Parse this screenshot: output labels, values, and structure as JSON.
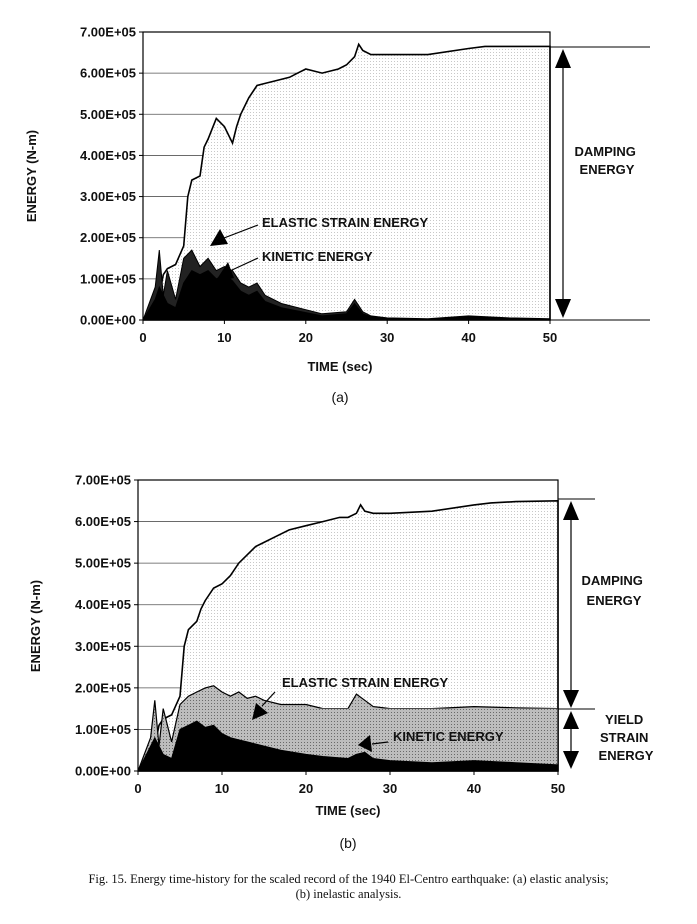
{
  "chart_data": [
    {
      "type": "area",
      "panel_label": "(a)",
      "xlabel": "TIME (sec)",
      "ylabel": "ENERGY (N-m)",
      "xlim": [
        0,
        50
      ],
      "ylim": [
        0,
        700000
      ],
      "x_ticks": [
        "0",
        "10",
        "20",
        "30",
        "40",
        "50"
      ],
      "y_ticks": [
        "0.00E+00",
        "1.00E+05",
        "2.00E+05",
        "3.00E+05",
        "4.00E+05",
        "5.00E+05",
        "6.00E+05",
        "7.00E+05"
      ],
      "grid": "horizontal",
      "annotations": [
        "ELASTIC STRAIN ENERGY",
        "KINETIC ENERGY",
        "DAMPING ENERGY"
      ],
      "series": [
        {
          "kind": "total_input",
          "x": [
            0,
            1.5,
            2,
            2.5,
            3,
            4,
            5,
            5.5,
            6,
            7,
            7.5,
            8,
            9,
            10,
            11,
            11.5,
            12,
            13,
            14,
            15,
            16,
            18,
            19,
            20,
            22,
            24,
            25,
            26,
            26.5,
            27,
            28,
            30,
            35,
            40,
            42,
            45,
            50
          ],
          "y": [
            0,
            10000,
            60000,
            110000,
            125000,
            135000,
            180000,
            300000,
            340000,
            350000,
            420000,
            440000,
            490000,
            470000,
            430000,
            470000,
            500000,
            540000,
            570000,
            575000,
            580000,
            590000,
            600000,
            610000,
            600000,
            610000,
            620000,
            640000,
            670000,
            655000,
            645000,
            645000,
            645000,
            660000,
            665000,
            665000,
            665000
          ]
        },
        {
          "kind": "elastic_plus_kinetic",
          "x": [
            0,
            1.5,
            2,
            2.5,
            3,
            4,
            5,
            6,
            7,
            8,
            9,
            10,
            11,
            12,
            13,
            14,
            15,
            17,
            20,
            22,
            25,
            26,
            27,
            28,
            30,
            35,
            40,
            45,
            50
          ],
          "y": [
            0,
            80000,
            170000,
            60000,
            120000,
            50000,
            150000,
            170000,
            130000,
            150000,
            120000,
            130000,
            120000,
            90000,
            80000,
            90000,
            60000,
            40000,
            25000,
            15000,
            20000,
            50000,
            20000,
            10000,
            5000,
            3000,
            10000,
            5000,
            3000
          ]
        },
        {
          "kind": "kinetic",
          "x": [
            0,
            1.5,
            2,
            3,
            4,
            5,
            6,
            7,
            8,
            9,
            10,
            11,
            12,
            13,
            14,
            15,
            17,
            20,
            22,
            25,
            26,
            27,
            28,
            30,
            35,
            40,
            45,
            50
          ],
          "y": [
            0,
            50000,
            80000,
            40000,
            30000,
            90000,
            120000,
            110000,
            120000,
            100000,
            110000,
            95000,
            70000,
            60000,
            70000,
            45000,
            30000,
            18000,
            10000,
            15000,
            40000,
            15000,
            8000,
            4000,
            2000,
            8000,
            4000,
            2000
          ]
        }
      ]
    },
    {
      "type": "area",
      "panel_label": "(b)",
      "xlabel": "TIME (sec)",
      "ylabel": "ENERGY (N-m)",
      "xlim": [
        0,
        50
      ],
      "ylim": [
        0,
        700000
      ],
      "x_ticks": [
        "0",
        "10",
        "20",
        "30",
        "40",
        "50"
      ],
      "y_ticks": [
        "0.00E+00",
        "1.00E+05",
        "2.00E+05",
        "3.00E+05",
        "4.00E+05",
        "5.00E+05",
        "6.00E+05",
        "7.00E+05"
      ],
      "grid": "horizontal",
      "annotations": [
        "ELASTIC STRAIN ENERGY",
        "KINETIC ENERGY",
        "DAMPING ENERGY",
        "YIELD STRAIN ENERGY"
      ],
      "series": [
        {
          "kind": "total_input",
          "x": [
            0,
            1.5,
            2,
            2.5,
            3,
            4,
            5,
            5.5,
            6,
            7,
            7.5,
            8,
            9,
            10,
            11,
            12,
            13,
            14,
            15,
            16,
            18,
            20,
            22,
            24,
            25,
            26,
            26.5,
            27,
            28,
            30,
            35,
            40,
            42,
            45,
            50
          ],
          "y": [
            0,
            10000,
            60000,
            110000,
            125000,
            135000,
            180000,
            300000,
            340000,
            360000,
            390000,
            410000,
            440000,
            450000,
            470000,
            500000,
            520000,
            540000,
            550000,
            560000,
            580000,
            590000,
            600000,
            610000,
            610000,
            620000,
            640000,
            625000,
            620000,
            620000,
            625000,
            640000,
            645000,
            648000,
            650000
          ]
        },
        {
          "kind": "elastic_plus_kinetic_plus_yield",
          "x": [
            0,
            1.5,
            2,
            2.5,
            3,
            4,
            5,
            6,
            7,
            8,
            9,
            10,
            11,
            12,
            13,
            14,
            15,
            17,
            20,
            22,
            25,
            26,
            27,
            28,
            30,
            35,
            40,
            45,
            50
          ],
          "y": [
            0,
            80000,
            170000,
            60000,
            150000,
            70000,
            160000,
            180000,
            190000,
            200000,
            205000,
            190000,
            180000,
            190000,
            175000,
            180000,
            170000,
            160000,
            160000,
            150000,
            150000,
            185000,
            170000,
            155000,
            150000,
            150000,
            155000,
            152000,
            150000
          ]
        },
        {
          "kind": "yield_strain",
          "x": [
            0,
            1.5,
            2,
            3,
            4,
            5,
            6,
            7,
            8,
            9,
            10,
            11,
            12,
            13,
            14,
            15,
            17,
            20,
            22,
            25,
            26,
            27,
            28,
            30,
            35,
            40,
            45,
            50
          ],
          "y": [
            0,
            20000,
            60000,
            40000,
            50000,
            80000,
            150000,
            150000,
            150000,
            150000,
            150000,
            150000,
            150000,
            150000,
            150000,
            150000,
            150000,
            150000,
            150000,
            150000,
            150000,
            150000,
            150000,
            150000,
            150000,
            150000,
            150000,
            150000
          ]
        },
        {
          "kind": "kinetic",
          "x": [
            0,
            1.5,
            2,
            3,
            4,
            5,
            6,
            7,
            8,
            9,
            10,
            11,
            12,
            13,
            14,
            15,
            17,
            20,
            22,
            25,
            26,
            27,
            28,
            30,
            35,
            40,
            45,
            50
          ],
          "y": [
            0,
            60000,
            80000,
            40000,
            30000,
            100000,
            110000,
            120000,
            105000,
            110000,
            90000,
            80000,
            75000,
            70000,
            65000,
            60000,
            50000,
            40000,
            35000,
            30000,
            40000,
            45000,
            30000,
            25000,
            20000,
            25000,
            20000,
            15000
          ]
        }
      ]
    }
  ],
  "caption": {
    "line1": "Fig. 15. Energy time-history for the scaled record of the 1940 El-Centro earthquake: (a) elastic analysis;",
    "line2": "(b) inelastic analysis."
  }
}
